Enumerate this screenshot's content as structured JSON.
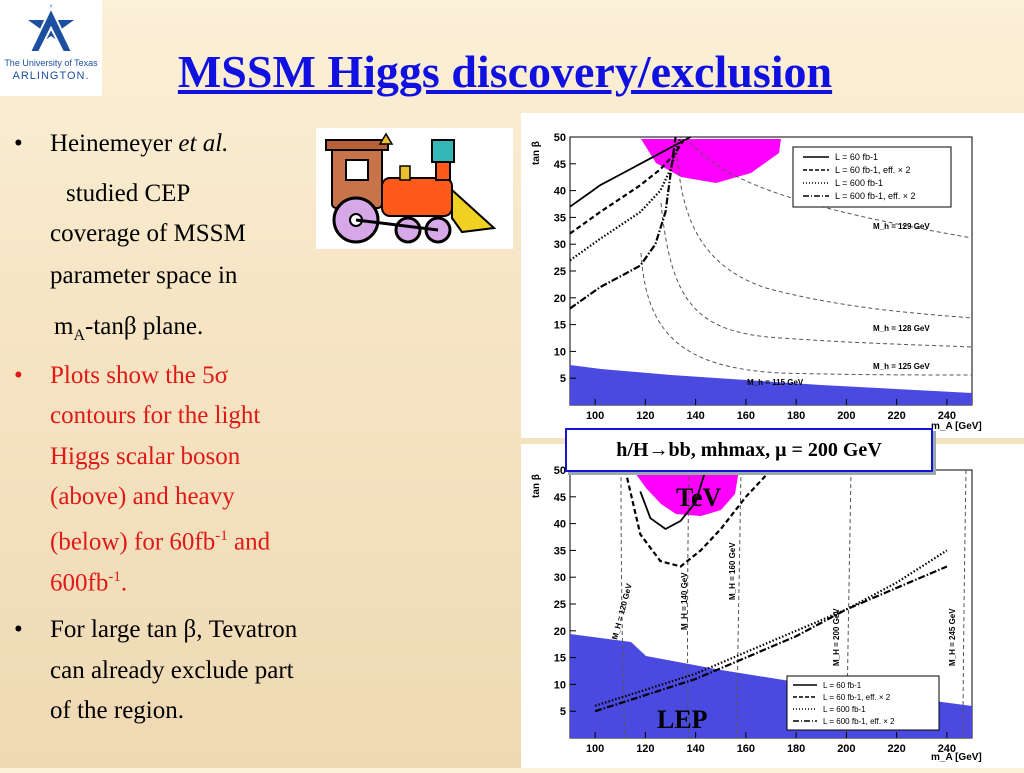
{
  "logo": {
    "line1": "The University of Texas",
    "line2": "ARLINGTON."
  },
  "title": "MSSM Higgs discovery/exclusion",
  "bullets": {
    "b1_line1_a": "Heinemeyer ",
    "b1_line1_b": "et al.",
    "b1_line2": "studied CEP",
    "b1_line3": "coverage of MSSM",
    "b1_line4": "parameter space in",
    "b1_line5_a": "m",
    "b1_line5_sub": "A",
    "b1_line5_b": "-tanβ plane.",
    "b2_line1": "Plots show the 5σ",
    "b2_line2": "contours for the light",
    "b2_line3": "Higgs scalar boson",
    "b2_line4": "(above) and heavy",
    "b2_line5_a": "(below) for 60fb",
    "b2_line5_sup": "-1",
    "b2_line5_b": " and",
    "b2_line6_a": "600fb",
    "b2_line6_sup": "-1",
    "b2_line6_b": ".",
    "b3_line1": "For large tan β, Tevatron",
    "b3_line2": "can already exclude part",
    "b3_line3": "of the region.",
    "bullet_glyph": "•"
  },
  "callout": "h/H→bb, mhmax, μ = 200 GeV",
  "colors": {
    "title": "#1010e0",
    "red_text": "#e01818",
    "tev_region": "#ff00ff",
    "lep_region": "#5050e0"
  },
  "chart_data": [
    {
      "type": "line",
      "xlabel": "m_A [GeV]",
      "ylabel": "tan β",
      "xlim": [
        90,
        250
      ],
      "ylim": [
        0,
        50
      ],
      "xticks": [
        100,
        120,
        140,
        160,
        180,
        200,
        220,
        240
      ],
      "yticks": [
        5,
        10,
        15,
        20,
        25,
        30,
        35,
        40,
        45,
        50
      ],
      "legend": {
        "position": "top-right",
        "entries": [
          "L = 60 fb-1",
          "L = 60 fb-1, eff. × 2",
          "L = 600 fb-1",
          "L = 600 fb-1, eff. × 2"
        ]
      },
      "annotations": [
        "M_h = 129 GeV",
        "M_h = 128 GeV",
        "M_h = 125 GeV",
        "M_h = 115 GeV"
      ],
      "series": [
        {
          "name": "L = 60 fb-1",
          "style": "solid",
          "x": [
            90,
            96,
            102,
            110,
            118,
            126,
            132,
            138
          ],
          "y": [
            37,
            39,
            41,
            43,
            45,
            47,
            48.5,
            50
          ]
        },
        {
          "name": "L = 60 fb-1, eff. × 2",
          "style": "dashed",
          "x": [
            90,
            96,
            102,
            110,
            118,
            126,
            132,
            136
          ],
          "y": [
            32,
            34,
            36,
            38.5,
            41,
            44,
            47,
            50
          ]
        },
        {
          "name": "L = 600 fb-1",
          "style": "dotted",
          "x": [
            90,
            96,
            102,
            110,
            118,
            126,
            130,
            134
          ],
          "y": [
            27,
            29,
            31,
            33.5,
            36,
            40,
            44,
            50
          ]
        },
        {
          "name": "L = 600 fb-1, eff. × 2",
          "style": "dashdot",
          "x": [
            90,
            96,
            102,
            110,
            118,
            124,
            128,
            132
          ],
          "y": [
            18,
            20,
            22,
            24,
            26,
            30,
            36,
            50
          ]
        }
      ]
    },
    {
      "type": "line",
      "xlabel": "m_A [GeV]",
      "ylabel": "tan β",
      "xlim": [
        90,
        250
      ],
      "ylim": [
        0,
        50
      ],
      "xticks": [
        100,
        120,
        140,
        160,
        180,
        200,
        220,
        240
      ],
      "yticks": [
        5,
        10,
        15,
        20,
        25,
        30,
        35,
        40,
        45,
        50
      ],
      "legend": {
        "position": "bottom-right",
        "entries": [
          "L = 60 fb-1",
          "L = 60 fb-1, eff. × 2",
          "L = 600 fb-1",
          "L = 600 fb-1, eff. × 2"
        ]
      },
      "annotations": [
        "M_H = 120 GeV",
        "M_H = 140 GeV",
        "M_H = 160 GeV",
        "M_H = 200 GeV",
        "M_H = 245 GeV",
        "TeV",
        "LEP"
      ],
      "series": [
        {
          "name": "L = 60 fb-1",
          "style": "solid",
          "x": [
            118,
            122,
            128,
            134,
            140,
            144
          ],
          "y": [
            46,
            41,
            39,
            40.5,
            44,
            50
          ]
        },
        {
          "name": "L = 60 fb-1, eff. × 2",
          "style": "dashed",
          "x": [
            112,
            118,
            126,
            134,
            142,
            150,
            160,
            170
          ],
          "y": [
            50,
            38,
            33,
            32,
            35,
            39,
            45,
            50
          ]
        },
        {
          "name": "L = 600 fb-1",
          "style": "dotted",
          "x": [
            100,
            120,
            140,
            160,
            180,
            200,
            220,
            240
          ],
          "y": [
            6,
            9,
            12,
            16,
            20,
            24,
            29,
            35
          ]
        },
        {
          "name": "L = 600 fb-1, eff. × 2",
          "style": "dashdot",
          "x": [
            100,
            120,
            140,
            160,
            180,
            200,
            220,
            240
          ],
          "y": [
            5,
            8,
            11,
            15,
            19,
            24,
            28,
            32
          ]
        }
      ]
    }
  ]
}
